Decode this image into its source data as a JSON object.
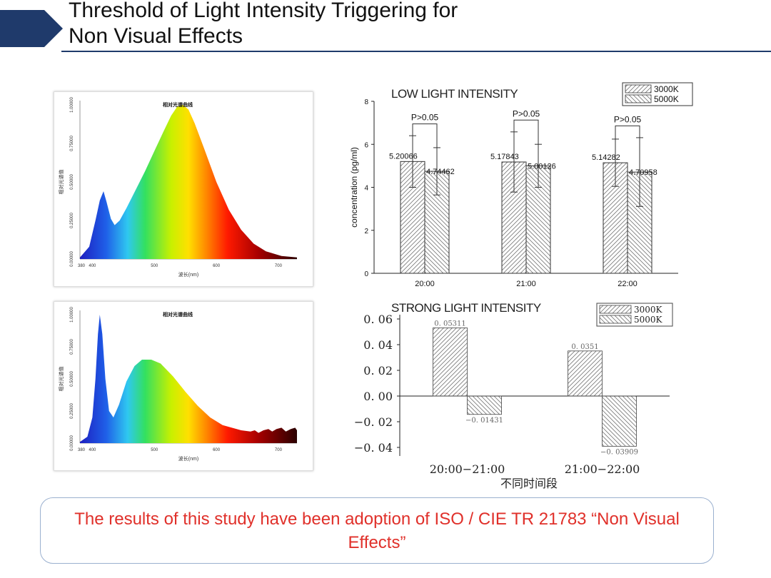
{
  "slide": {
    "title_line1": "Threshold of Light Intensity Triggering for",
    "title_line2": "Non Visual Effects",
    "note": "The results of this study have been adoption of ISO / CIE TR 21783 “Non Visual Effects”",
    "accent_color": "#1f3a6b",
    "note_color": "#e0302a"
  },
  "spectra": [
    {
      "title": "相对光谱曲线",
      "ylabel": "相对光谱值",
      "xlabel": "波长(nm)",
      "x_ticks": [
        "380",
        "400",
        "500",
        "600",
        "700"
      ],
      "y_ticks": [
        "0.00000",
        "0.25000",
        "0.50000",
        "0.75000",
        "1.00000"
      ],
      "xlim": [
        380,
        730
      ],
      "ylim": [
        0,
        1
      ],
      "curve": [
        [
          380,
          0.01
        ],
        [
          395,
          0.08
        ],
        [
          405,
          0.25
        ],
        [
          412,
          0.38
        ],
        [
          418,
          0.44
        ],
        [
          423,
          0.37
        ],
        [
          430,
          0.26
        ],
        [
          436,
          0.22
        ],
        [
          444,
          0.25
        ],
        [
          455,
          0.33
        ],
        [
          470,
          0.45
        ],
        [
          485,
          0.57
        ],
        [
          500,
          0.7
        ],
        [
          515,
          0.83
        ],
        [
          527,
          0.93
        ],
        [
          537,
          0.99
        ],
        [
          546,
          1.0
        ],
        [
          555,
          0.97
        ],
        [
          565,
          0.88
        ],
        [
          580,
          0.72
        ],
        [
          600,
          0.5
        ],
        [
          620,
          0.32
        ],
        [
          640,
          0.19
        ],
        [
          660,
          0.1
        ],
        [
          680,
          0.05
        ],
        [
          705,
          0.02
        ],
        [
          730,
          0.01
        ]
      ]
    },
    {
      "title": "相对光谱曲线",
      "ylabel": "相对光谱值",
      "xlabel": "波长(nm)",
      "x_ticks": [
        "380",
        "400",
        "500",
        "600",
        "700"
      ],
      "y_ticks": [
        "0.00000",
        "0.25000",
        "0.50000",
        "0.75000",
        "1.00000"
      ],
      "xlim": [
        380,
        730
      ],
      "ylim": [
        0,
        1
      ],
      "curve": [
        [
          380,
          0.01
        ],
        [
          392,
          0.05
        ],
        [
          400,
          0.2
        ],
        [
          405,
          0.5
        ],
        [
          409,
          0.85
        ],
        [
          412,
          1.0
        ],
        [
          416,
          0.85
        ],
        [
          421,
          0.5
        ],
        [
          427,
          0.25
        ],
        [
          434,
          0.2
        ],
        [
          443,
          0.3
        ],
        [
          455,
          0.48
        ],
        [
          468,
          0.6
        ],
        [
          480,
          0.65
        ],
        [
          495,
          0.65
        ],
        [
          510,
          0.62
        ],
        [
          530,
          0.52
        ],
        [
          550,
          0.4
        ],
        [
          570,
          0.29
        ],
        [
          590,
          0.2
        ],
        [
          610,
          0.14
        ],
        [
          625,
          0.12
        ],
        [
          640,
          0.1
        ],
        [
          655,
          0.09
        ],
        [
          662,
          0.1
        ],
        [
          668,
          0.08
        ],
        [
          676,
          0.1
        ],
        [
          684,
          0.11
        ],
        [
          690,
          0.09
        ],
        [
          697,
          0.11
        ],
        [
          705,
          0.12
        ],
        [
          712,
          0.09
        ],
        [
          720,
          0.11
        ],
        [
          727,
          0.12
        ],
        [
          730,
          0.1
        ]
      ]
    }
  ],
  "chart_data": [
    {
      "type": "bar",
      "title": "LOW LIGHT INTENSITY",
      "ylabel": "concentration (pg/ml)",
      "ylim": [
        0,
        8
      ],
      "y_ticks": [
        "0",
        "2",
        "4",
        "6",
        "8"
      ],
      "categories": [
        "20:00",
        "21:00",
        "22:00"
      ],
      "series": [
        {
          "name": "3000K",
          "values": [
            5.20066,
            5.17843,
            5.14282
          ],
          "labels": [
            "5.20066",
            "5.17843",
            "5.14282"
          ],
          "error": [
            1.2,
            1.4,
            1.1
          ]
        },
        {
          "name": "5000K",
          "values": [
            4.74462,
            5.00126,
            4.70958
          ],
          "labels": [
            "4.74462",
            "5.00126",
            "4.70958"
          ],
          "error": [
            1.1,
            1.0,
            1.6
          ]
        }
      ],
      "annotations": [
        "P>0.05",
        "P>0.05",
        "P>0.05"
      ],
      "legend": "top-right"
    },
    {
      "type": "bar",
      "title": "STRONG LIGHT INTENSITY",
      "xlabel": "不同时间段",
      "ylim": [
        -0.05,
        0.06
      ],
      "y_ticks": [
        "0. 06",
        "0. 04",
        "0. 02",
        "0. 00",
        "−0. 02",
        "−0. 04"
      ],
      "categories": [
        "20:00−21:00",
        "21:00−22:00"
      ],
      "series": [
        {
          "name": "3000K",
          "values": [
            0.05311,
            0.0351
          ],
          "labels": [
            "0. 05311",
            "0. 0351"
          ]
        },
        {
          "name": "5000K",
          "values": [
            -0.01431,
            -0.03909
          ],
          "labels": [
            "−0. 01431",
            "−0. 03909"
          ]
        }
      ],
      "legend": "top-right"
    }
  ]
}
